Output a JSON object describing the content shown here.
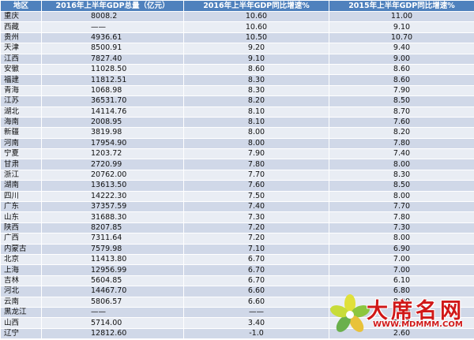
{
  "table": {
    "headers": [
      "地区",
      "2016年上半年GDP总量（亿元）",
      "2016年上半年GDP同比增速%",
      "2015年上半年GDP同比增速%"
    ],
    "rows": [
      [
        "重庆",
        "8008.2",
        "10.60",
        "11.00"
      ],
      [
        "西藏",
        "——",
        "10.60",
        "9.10"
      ],
      [
        "贵州",
        "4936.61",
        "10.50",
        "10.70"
      ],
      [
        "天津",
        "8500.91",
        "9.20",
        "9.40"
      ],
      [
        "江西",
        "7827.40",
        "9.10",
        "9.00"
      ],
      [
        "安徽",
        "11028.50",
        "8.60",
        "8.60"
      ],
      [
        "福建",
        "11812.51",
        "8.30",
        "8.60"
      ],
      [
        "青海",
        "1068.98",
        "8.30",
        "7.90"
      ],
      [
        "江苏",
        "36531.70",
        "8.20",
        "8.50"
      ],
      [
        "湖北",
        "14114.76",
        "8.10",
        "8.70"
      ],
      [
        "海南",
        "2008.95",
        "8.10",
        "7.60"
      ],
      [
        "新疆",
        "3819.98",
        "8.00",
        "8.20"
      ],
      [
        "河南",
        "17954.90",
        "8.00",
        "7.80"
      ],
      [
        "宁夏",
        "1203.72",
        "7.90",
        "7.40"
      ],
      [
        "甘肃",
        "2720.99",
        "7.80",
        "8.00"
      ],
      [
        "浙江",
        "20762.00",
        "7.70",
        "8.30"
      ],
      [
        "湖南",
        "13613.50",
        "7.60",
        "8.50"
      ],
      [
        "四川",
        "14222.30",
        "7.50",
        "8.00"
      ],
      [
        "广东",
        "37357.59",
        "7.40",
        "7.70"
      ],
      [
        "山东",
        "31688.30",
        "7.30",
        "7.80"
      ],
      [
        "陕西",
        "8207.85",
        "7.20",
        "7.30"
      ],
      [
        "广西",
        "7311.64",
        "7.20",
        "8.00"
      ],
      [
        "内蒙古",
        "7579.98",
        "7.10",
        "6.90"
      ],
      [
        "北京",
        "11413.80",
        "6.70",
        "7.00"
      ],
      [
        "上海",
        "12956.99",
        "6.70",
        "7.00"
      ],
      [
        "吉林",
        "5604.85",
        "6.70",
        "6.10"
      ],
      [
        "河北",
        "14467.70",
        "6.60",
        "6.80"
      ],
      [
        "云南",
        "5806.57",
        "6.60",
        "8.00"
      ],
      [
        "黑龙江",
        "——",
        "——",
        "5.00"
      ],
      [
        "山西",
        "5714.00",
        "3.40",
        "2.60"
      ],
      [
        "辽宁",
        "12812.60",
        "-1.0",
        "2.60"
      ]
    ]
  },
  "watermark": {
    "brand": "大席名网",
    "url": "WWW.MDMMM.COM"
  },
  "colors": {
    "header_bg": "#4f81bd",
    "row_dark": "#d0d8e8",
    "row_light": "#e9edf4",
    "watermark": "#d01818"
  }
}
